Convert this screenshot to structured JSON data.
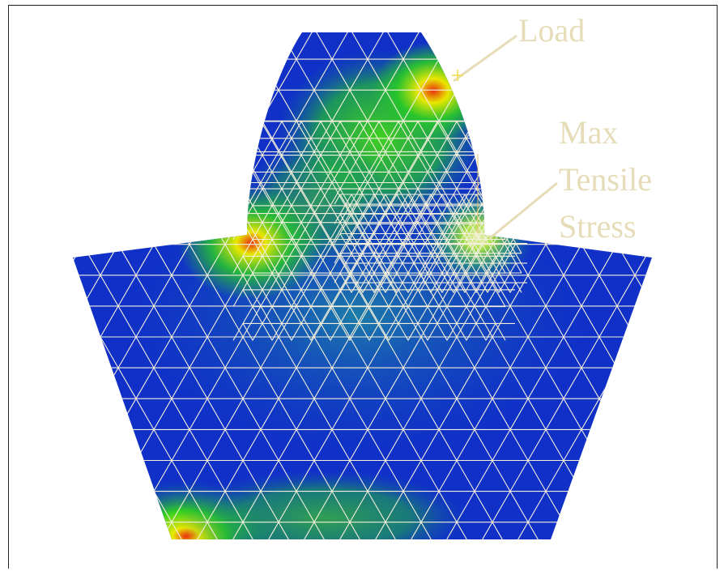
{
  "annotations": {
    "load": "Load",
    "max_stress_line1": "Max",
    "max_stress_line2": "Tensile",
    "max_stress_line3": "Stress"
  },
  "colors": {
    "background": "#ffffff",
    "low_stress": "#1030c8",
    "mid_stress": "#28c828",
    "high_stress": "#e8e800",
    "peak_stress": "#e83010",
    "mesh": "#f4f0dc",
    "annotation": "#e6dcb8"
  }
}
